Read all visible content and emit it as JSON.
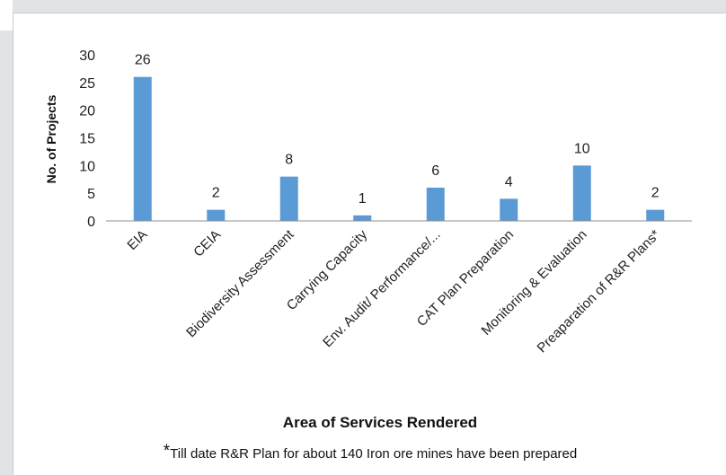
{
  "chart_data": {
    "type": "bar",
    "categories": [
      "EIA",
      "CEIA",
      "Biodiversity Assessment",
      "Carrying Capacity",
      "Env. Audit/ Performance/...",
      "CAT Plan Preparation",
      "Monitoring & Evaluation",
      "Preaparation of R&R Plans*"
    ],
    "values": [
      26,
      2,
      8,
      1,
      6,
      4,
      10,
      2
    ],
    "title": "",
    "xlabel": "Area of Services Rendered",
    "ylabel": "No. of Projects",
    "ylim": [
      0,
      30
    ],
    "yticks": [
      0,
      5,
      10,
      15,
      20,
      25,
      30
    ],
    "bar_color": "#5b9bd5",
    "grid": false,
    "legend": "none"
  },
  "footnote": {
    "marker": "*",
    "text": "Till date R&R Plan for about 140 Iron ore mines have been prepared"
  }
}
